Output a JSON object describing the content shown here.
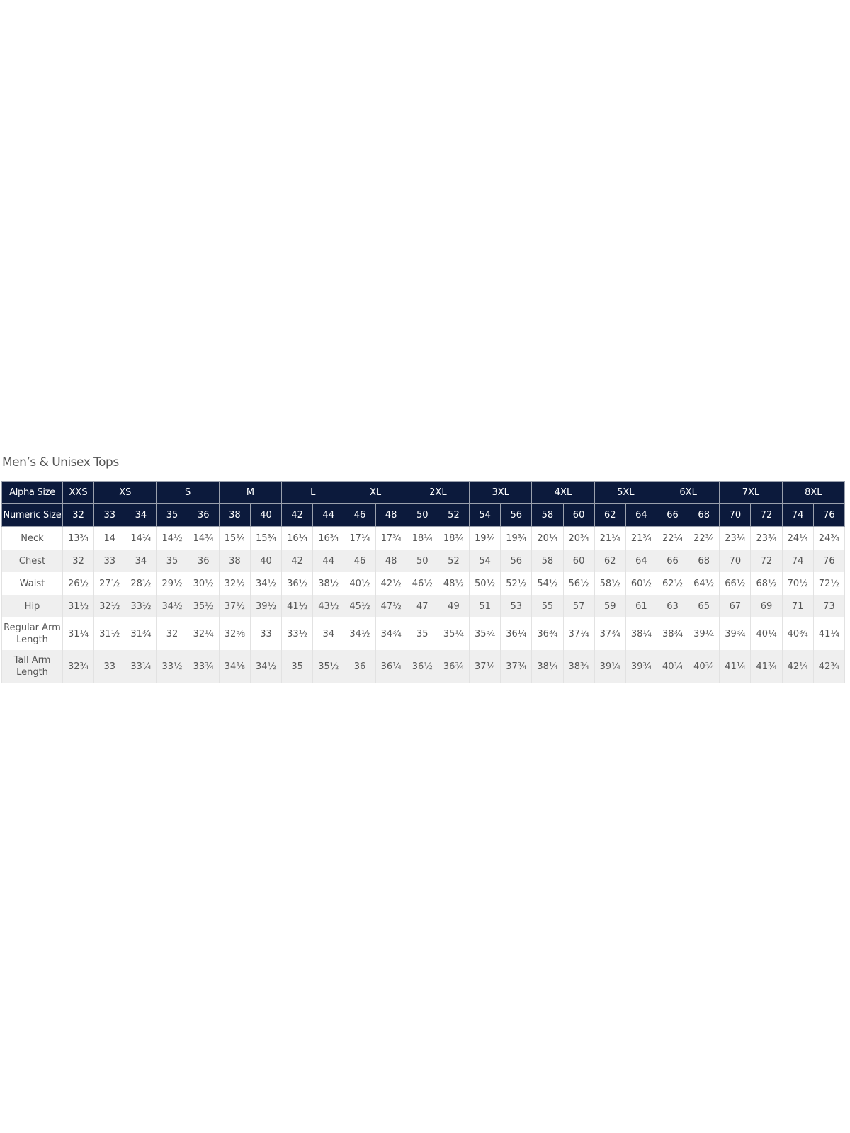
{
  "title": "Men’s & Unisex Tops",
  "alpha_label": "Alpha Size",
  "alpha_sizes": [
    {
      "label": "XXS",
      "span": 1
    },
    {
      "label": "XS",
      "span": 2
    },
    {
      "label": "S",
      "span": 2
    },
    {
      "label": "M",
      "span": 2
    },
    {
      "label": "L",
      "span": 2
    },
    {
      "label": "XL",
      "span": 2
    },
    {
      "label": "2XL",
      "span": 2
    },
    {
      "label": "3XL",
      "span": 2
    },
    {
      "label": "4XL",
      "span": 2
    },
    {
      "label": "5XL",
      "span": 2
    },
    {
      "label": "6XL",
      "span": 2
    },
    {
      "label": "7XL",
      "span": 2
    },
    {
      "label": "8XL",
      "span": 2
    }
  ],
  "numeric_label": "Numeric Size",
  "numeric_sizes": [
    "32",
    "33",
    "34",
    "35",
    "36",
    "38",
    "40",
    "42",
    "44",
    "46",
    "48",
    "50",
    "52",
    "54",
    "56",
    "58",
    "60",
    "62",
    "64",
    "66",
    "68",
    "70",
    "72",
    "74",
    "76"
  ],
  "colors": {
    "header_bg": "#0c1a3c",
    "header_text": "#ffffff",
    "alt_row": "#efefef",
    "text": "#555555"
  },
  "rows": [
    {
      "label": "Neck",
      "values": [
        "13¾",
        "14",
        "14¼",
        "14½",
        "14¾",
        "15¼",
        "15¾",
        "16¼",
        "16¾",
        "17¼",
        "17¾",
        "18¼",
        "18¾",
        "19¼",
        "19¾",
        "20¼",
        "20¾",
        "21¼",
        "21¾",
        "22¼",
        "22¾",
        "23¼",
        "23¾",
        "24¼",
        "24¾"
      ]
    },
    {
      "label": "Chest",
      "values": [
        "32",
        "33",
        "34",
        "35",
        "36",
        "38",
        "40",
        "42",
        "44",
        "46",
        "48",
        "50",
        "52",
        "54",
        "56",
        "58",
        "60",
        "62",
        "64",
        "66",
        "68",
        "70",
        "72",
        "74",
        "76"
      ]
    },
    {
      "label": "Waist",
      "values": [
        "26½",
        "27½",
        "28½",
        "29½",
        "30½",
        "32½",
        "34½",
        "36½",
        "38½",
        "40½",
        "42½",
        "46½",
        "48½",
        "50½",
        "52½",
        "54½",
        "56½",
        "58½",
        "60½",
        "62½",
        "64½",
        "66½",
        "68½",
        "70½",
        "72½"
      ]
    },
    {
      "label": "Hip",
      "values": [
        "31½",
        "32½",
        "33½",
        "34½",
        "35½",
        "37½",
        "39½",
        "41½",
        "43½",
        "45½",
        "47½",
        "47",
        "49",
        "51",
        "53",
        "55",
        "57",
        "59",
        "61",
        "63",
        "65",
        "67",
        "69",
        "71",
        "73"
      ]
    },
    {
      "label": "Regular Arm Length",
      "values": [
        "31¼",
        "31½",
        "31¾",
        "32",
        "32¼",
        "32⅝",
        "33",
        "33½",
        "34",
        "34½",
        "34¾",
        "35",
        "35¼",
        "35¾",
        "36¼",
        "36¾",
        "37¼",
        "37¾",
        "38¼",
        "38¾",
        "39¼",
        "39¾",
        "40¼",
        "40¾",
        "41¼"
      ]
    },
    {
      "label": "Tall Arm Length",
      "values": [
        "32¾",
        "33",
        "33¼",
        "33½",
        "33¾",
        "34⅛",
        "34½",
        "35",
        "35½",
        "36",
        "36¼",
        "36½",
        "36¾",
        "37¼",
        "37¾",
        "38¼",
        "38¾",
        "39¼",
        "39¾",
        "40¼",
        "40¾",
        "41¼",
        "41¾",
        "42¼",
        "42¾"
      ]
    }
  ]
}
